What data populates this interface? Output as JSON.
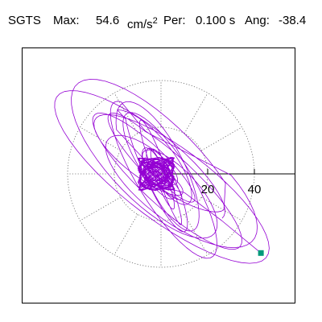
{
  "header": {
    "station": "SGTS",
    "max_label": "Max:",
    "max_value": "54.6",
    "max_unit": "cm/s",
    "max_unit_exp": "2",
    "per_label": "Per:",
    "per_value": "0.100 s",
    "ang_label": "Ang:",
    "ang_value": "-38.4"
  },
  "chart_data": {
    "type": "line",
    "title": "",
    "xlabel": "",
    "ylabel": "",
    "rings": [
      20,
      40
    ],
    "ring_labels": [
      "20",
      "40"
    ],
    "spoke_angles_deg": [
      0,
      30,
      60,
      90,
      120,
      150,
      180,
      210,
      240,
      270,
      300,
      330
    ],
    "xlim": [
      -60,
      60
    ],
    "ylim": [
      -55,
      55
    ],
    "grid": true,
    "major_axis_angle_deg": -38.4,
    "orbit_max": 54.6,
    "end_point": {
      "x": 42.8,
      "y": -33.9
    },
    "colors": {
      "trace": "#9400d3",
      "end_marker": "#00997a",
      "grid": "#666666",
      "axis": "#000000"
    }
  }
}
